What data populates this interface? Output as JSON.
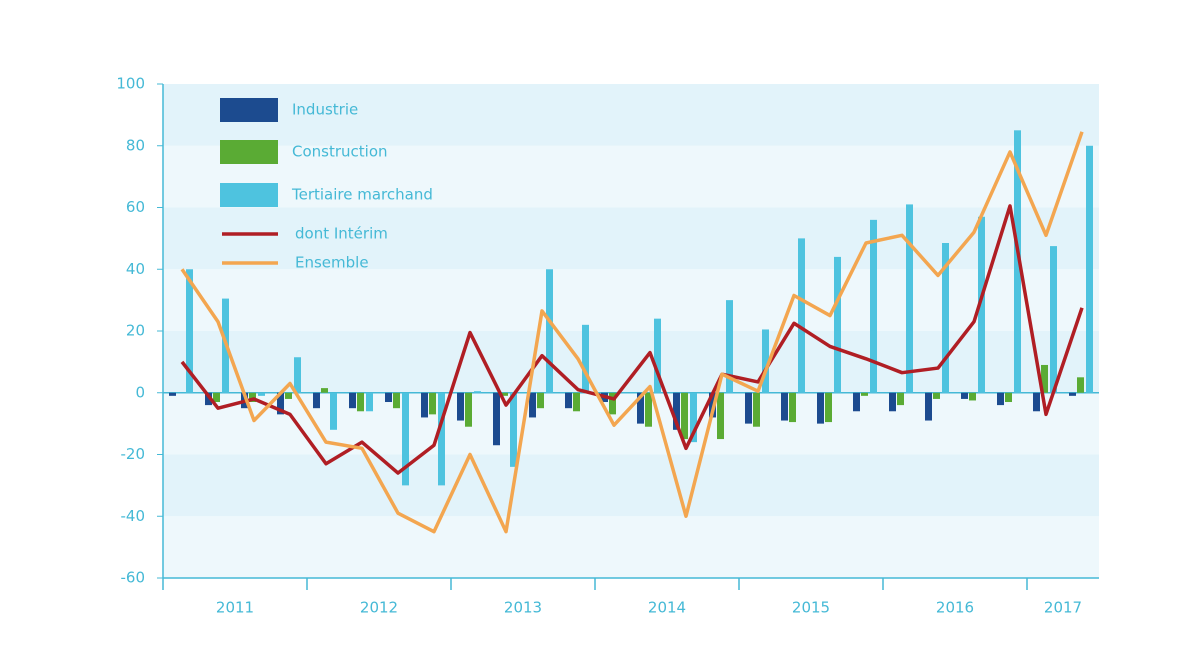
{
  "chart_data": {
    "type": "bar",
    "categories": [
      "2011",
      null,
      null,
      null,
      "2012",
      null,
      null,
      null,
      "2013",
      null,
      null,
      null,
      "2014",
      null,
      null,
      null,
      "2015",
      null,
      null,
      null,
      "2016",
      null,
      null,
      null,
      "2017",
      null
    ],
    "series": [
      {
        "name": "Industrie",
        "type": "bar",
        "color": "#1c4b8f",
        "values": [
          -1,
          -4,
          -5,
          -7,
          -5,
          -5,
          -3,
          -8,
          -9,
          -17,
          -8,
          -5,
          -3,
          -10,
          -12,
          -8,
          -10,
          -9,
          -10,
          -6,
          -6,
          -9,
          -2,
          -4,
          -6,
          -1
        ]
      },
      {
        "name": "Construction",
        "type": "bar",
        "color": "#5aab34",
        "values": [
          0,
          -3,
          -3,
          -2,
          1.5,
          -6,
          -5,
          -7,
          -11,
          -1,
          -5,
          -6,
          -7,
          -11,
          -15,
          -15,
          -11,
          -9.5,
          -9.5,
          -1,
          -4,
          -2,
          -2.5,
          -3,
          9,
          5
        ]
      },
      {
        "name": "Tertiaire marchand",
        "type": "bar",
        "color": "#4ec3df",
        "values": [
          40,
          30.5,
          -1,
          11.5,
          -12,
          -6,
          -30,
          -30,
          0.5,
          -24,
          40,
          22,
          0,
          24,
          -16,
          30,
          20.5,
          50,
          44,
          56,
          61,
          48.5,
          57,
          85,
          47.5,
          80
        ]
      },
      {
        "name": "dont Intérim",
        "type": "line",
        "color": "#b01e24",
        "values": [
          10,
          -5,
          -2,
          -7,
          -23,
          -16,
          -26,
          -17,
          19.5,
          -4,
          12,
          1,
          -2,
          13,
          -18,
          6,
          3.5,
          22.5,
          15,
          11,
          6.5,
          8,
          23,
          60.5,
          -7,
          27.5
        ]
      },
      {
        "name": "Ensemble",
        "type": "line",
        "color": "#f3a650",
        "values": [
          40,
          23,
          -9,
          3,
          -16,
          -18,
          -39,
          -45,
          -20,
          -45,
          26.5,
          11,
          -10.5,
          2,
          -40,
          6,
          0.5,
          31.5,
          25,
          48.5,
          51,
          38,
          52,
          78,
          51,
          84.5
        ]
      }
    ],
    "ylim": [
      -60,
      100
    ],
    "yticks": [
      -60,
      -40,
      -20,
      0,
      20,
      40,
      60,
      80,
      100
    ]
  }
}
